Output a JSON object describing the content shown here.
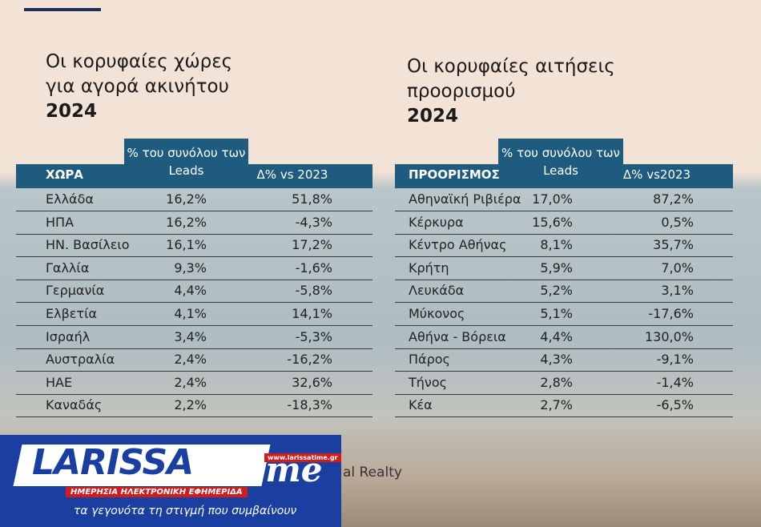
{
  "tables": [
    {
      "title": [
        "Οι κορυφαίες χώρες",
        "για αγορά ακινήτου",
        "2024"
      ],
      "headers": [
        "ΧΩΡΑ",
        "% του συνόλου των Leads",
        "Δ% vs  2023"
      ],
      "rows": [
        [
          "Ελλάδα",
          "16,2%",
          "51,8%"
        ],
        [
          "ΗΠΑ",
          "16,2%",
          "-4,3%"
        ],
        [
          "ΗΝ. Βασίλειο",
          "16,1%",
          "17,2%"
        ],
        [
          "Γαλλία",
          "9,3%",
          "-1,6%"
        ],
        [
          "Γερμανία",
          "4,4%",
          "-5,8%"
        ],
        [
          "Ελβετία",
          "4,1%",
          "14,1%"
        ],
        [
          "Ισραήλ",
          "3,4%",
          "-5,3%"
        ],
        [
          "Αυστραλία",
          "2,4%",
          "-16,2%"
        ],
        [
          "ΗΑΕ",
          "2,4%",
          "32,6%"
        ],
        [
          "Καναδάς",
          "2,2%",
          "-18,3%"
        ]
      ]
    },
    {
      "title": [
        "Οι κορυφαίες αιτήσεις",
        "προορισμού",
        "2024"
      ],
      "headers": [
        "ΠΡΟΟΡΙΣΜΟΣ",
        "% του συνόλου των Leads",
        "Δ% vs2023"
      ],
      "rows": [
        [
          "Αθηναϊκή Ριβιέρα",
          "17,0%",
          "87,2%"
        ],
        [
          "Κέρκυρα",
          "15,6%",
          "0,5%"
        ],
        [
          "Κέντρο Αθήνας",
          "8,1%",
          "35,7%"
        ],
        [
          "Κρήτη",
          "5,9%",
          "7,0%"
        ],
        [
          "Λευκάδα",
          "5,2%",
          "3,1%"
        ],
        [
          "Μύκονος",
          "5,1%",
          "-17,6%"
        ],
        [
          "Αθήνα - Βόρεια",
          "4,4%",
          "130,0%"
        ],
        [
          "Πάρος",
          "4,3%",
          "-9,1%"
        ],
        [
          "Τήνος",
          "2,8%",
          "-1,4%"
        ],
        [
          "Κέα",
          "2,7%",
          "-6,5%"
        ]
      ]
    }
  ],
  "source_fragment": "al Realty",
  "logo": {
    "name": "LARISSA",
    "name2": "time",
    "url": "www.larissatime.gr",
    "tagline": "ΗΜΕΡΗΣΙΑ ΗΛΕΚΤΡΟΝΙΚΗ ΕΦΗΜΕΡΙΔΑ",
    "slogan": "τα γεγονότα τη στιγμή που συμβαίνουν"
  }
}
